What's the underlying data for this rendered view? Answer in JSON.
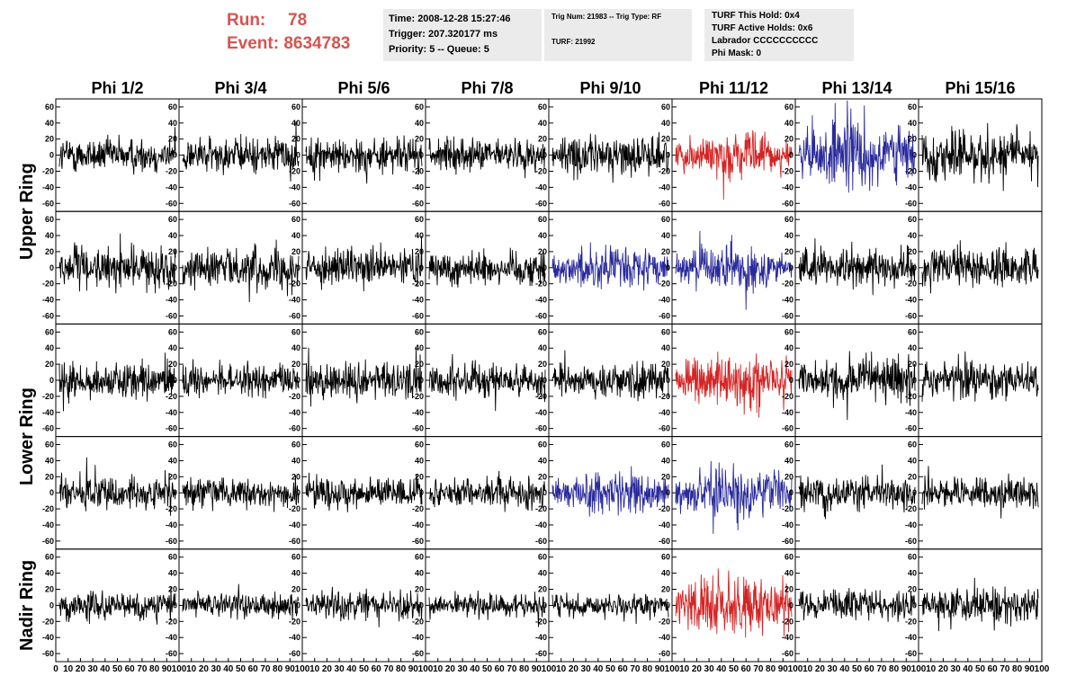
{
  "header": {
    "run_label": "Run:",
    "run_value": "78",
    "event_label": "Event:",
    "event_value": "8634783",
    "time": "Time: 2008-12-28 15:27:46",
    "trigger": "Trigger: 207.320177 ms",
    "priority": "Priority: 5 -- Queue: 5",
    "trig_num": "Trig Num: 21983 -- Trig Type: RF",
    "turf": "TURF: 21992",
    "turf_hold": "TURF This Hold: 0x4",
    "turf_active": "TURF Active Holds: 0x6",
    "labrador": "Labrador CCCCCCCCCC",
    "phi_mask": "Phi Mask: 0"
  },
  "colors": {
    "run_text": "#d9534f",
    "info_bg": "#ebebeb",
    "wave_default": "#000000",
    "wave_red": "#d42424",
    "wave_blue": "#2a2a9c"
  },
  "chart_data": {
    "type": "line",
    "columns": [
      "Phi 1/2",
      "Phi 3/4",
      "Phi 5/6",
      "Phi 7/8",
      "Phi 9/10",
      "Phi 11/12",
      "Phi 13/14",
      "Phi 15/16"
    ],
    "rings": [
      {
        "label": "Upper Ring",
        "rows": 2
      },
      {
        "label": "Lower Ring",
        "rows": 2
      },
      {
        "label": "Nadir Ring",
        "rows": 1
      }
    ],
    "ylim": [
      -70,
      70
    ],
    "yticks": [
      -60,
      -40,
      -20,
      0,
      20,
      40,
      60
    ],
    "xlim": [
      0,
      100
    ],
    "xtick_labels_first": [
      "0",
      "10",
      "20",
      "30",
      "40",
      "50",
      "60",
      "70",
      "80",
      "90",
      "100"
    ],
    "xtick_labels": [
      "10",
      "20",
      "30",
      "40",
      "50",
      "60",
      "70",
      "80",
      "90",
      "100"
    ],
    "n_samples": 260,
    "panel_colors": [
      [
        "black",
        "black",
        "black",
        "black",
        "black",
        "red",
        "blue",
        "black"
      ],
      [
        "black",
        "black",
        "black",
        "black",
        "blue",
        "blue",
        "black",
        "black"
      ],
      [
        "black",
        "black",
        "black",
        "black",
        "black",
        "red",
        "black",
        "black"
      ],
      [
        "black",
        "black",
        "black",
        "black",
        "blue",
        "blue",
        "black",
        "black"
      ],
      [
        "black",
        "black",
        "black",
        "black",
        "black",
        "red",
        "black",
        "black"
      ]
    ],
    "panel_amplitude": [
      [
        18,
        18,
        18,
        16,
        20,
        18,
        30,
        26
      ],
      [
        20,
        20,
        18,
        18,
        18,
        18,
        18,
        20
      ],
      [
        18,
        16,
        20,
        18,
        18,
        22,
        22,
        20
      ],
      [
        16,
        16,
        16,
        16,
        18,
        20,
        16,
        16
      ],
      [
        14,
        12,
        14,
        12,
        12,
        26,
        14,
        18
      ]
    ]
  }
}
